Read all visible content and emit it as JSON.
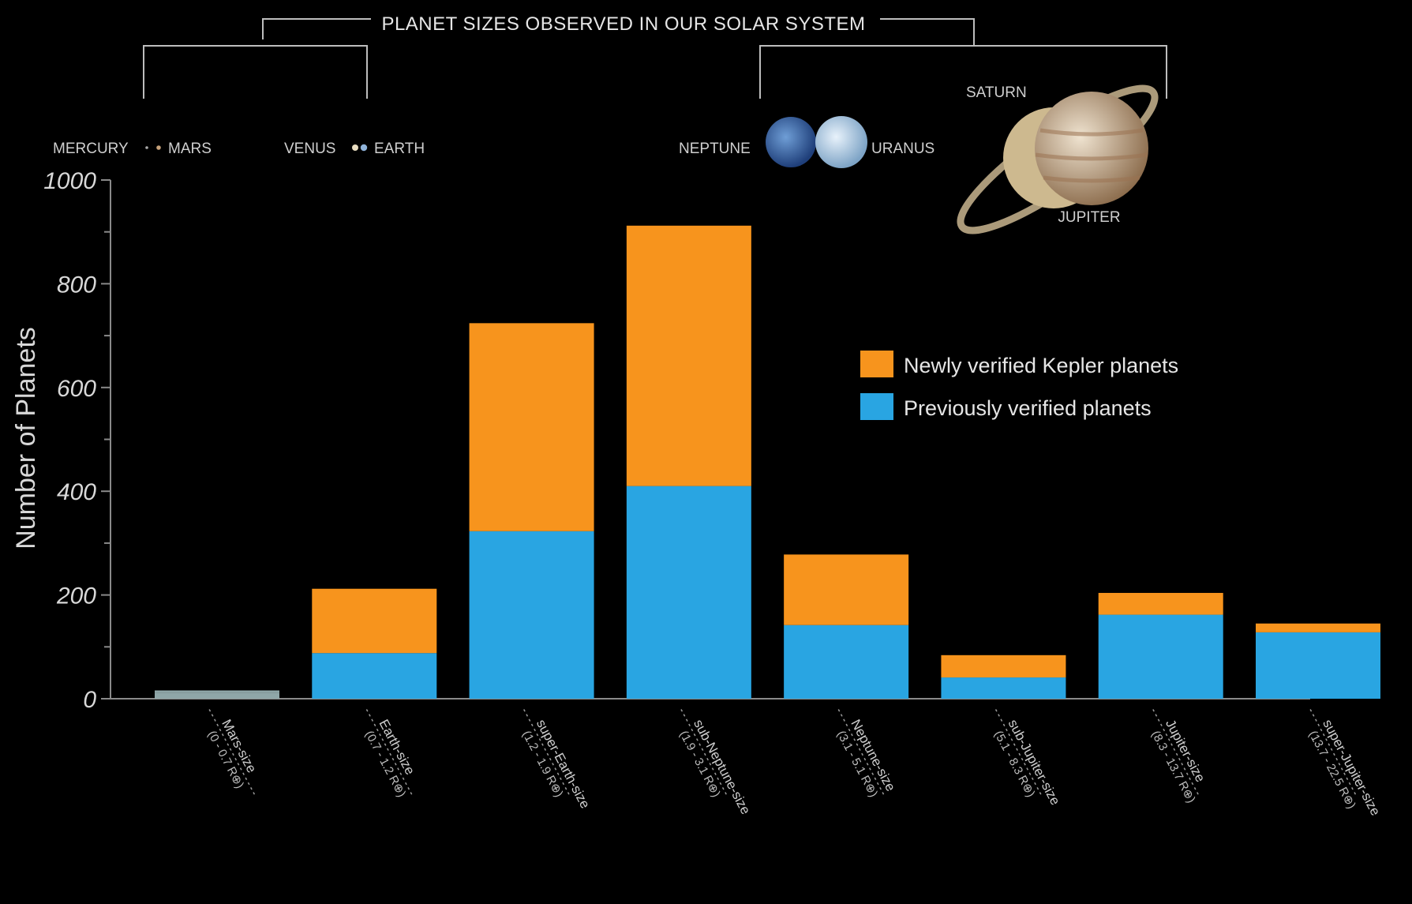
{
  "chart_data": {
    "type": "bar",
    "stacked": true,
    "title": "PLANET SIZES OBSERVED IN OUR SOLAR SYSTEM",
    "ylabel": "Number of Planets",
    "xlabel": "",
    "ylim": [
      0,
      1000
    ],
    "yticks": [
      "0",
      "200",
      "400",
      "600",
      "800",
      "1000"
    ],
    "categories": [
      {
        "name": "Mars-size",
        "range": "(0 - 0.7 R⊕)"
      },
      {
        "name": "Earth-size",
        "range": "(0.7 - 1.2 R⊕)"
      },
      {
        "name": "super-Earth-size",
        "range": "(1.2 - 1.9 R⊕)"
      },
      {
        "name": "sub-Neptune-size",
        "range": "(1.9 - 3.1 R⊕)"
      },
      {
        "name": "Neptune-size",
        "range": "(3.1 - 5.1 R⊕)"
      },
      {
        "name": "sub-Jupiter-size",
        "range": "(5.1 - 8.3 R⊕)"
      },
      {
        "name": "Jupiter-size",
        "range": "(8.3 - 13.7 R⊕)"
      },
      {
        "name": "super-Jupiter-size",
        "range": "(13.7 - 22.5 R⊕)"
      }
    ],
    "series": [
      {
        "name": "Previously verified planets",
        "color": "#29a5e2",
        "values": [
          12,
          88,
          323,
          410,
          142,
          41,
          162,
          128
        ]
      },
      {
        "name": "Newly verified Kepler planets",
        "color": "#f7941d",
        "values": [
          4,
          124,
          401,
          502,
          136,
          43,
          42,
          17
        ]
      }
    ],
    "legend": {
      "position": "right",
      "entries": [
        {
          "label": "Newly verified Kepler planets",
          "color": "#f7941d"
        },
        {
          "label": "Previously verified planets",
          "color": "#29a5e2"
        }
      ]
    },
    "grid": false
  },
  "solar_system_labels": {
    "mercury": "MERCURY",
    "mars": "MARS",
    "venus": "VENUS",
    "earth": "EARTH",
    "neptune": "NEPTUNE",
    "uranus": "URANUS",
    "saturn": "SATURN",
    "jupiter": "JUPITER"
  },
  "colors": {
    "background": "#000000",
    "axis": "#8a8a8a",
    "text": "#d8d8d8"
  }
}
